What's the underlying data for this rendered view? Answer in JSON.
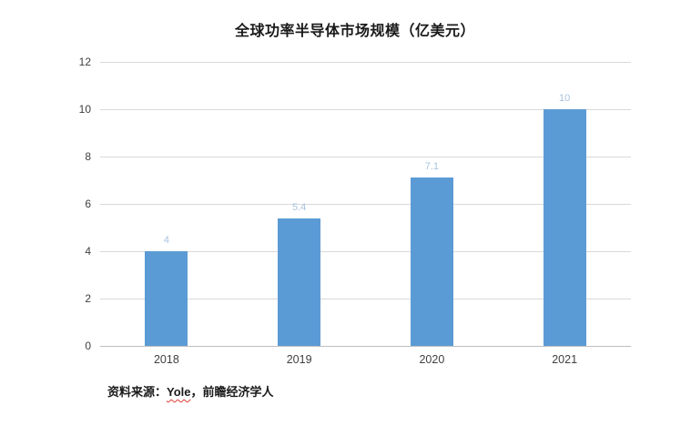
{
  "title": "全球功率半导体市场规模（亿美元）",
  "source_note": {
    "prefix": "资料来源：",
    "highlight": "Yole",
    "suffix": "，前瞻经济学人"
  },
  "colors": {
    "bar": "#5b9bd5",
    "data_label": "#a9c2de",
    "gridline": "#d9d9d9",
    "axis_line": "#bfbfbf",
    "tick_label": "#404040",
    "title": "#1a1a1a"
  },
  "chart_data": {
    "type": "bar",
    "title": "全球功率半导体市场规模（亿美元）",
    "categories": [
      "2018",
      "2019",
      "2020",
      "2021"
    ],
    "values": [
      4,
      5.4,
      7.1,
      10
    ],
    "data_labels": [
      "4",
      "5.4",
      "7.1",
      "10"
    ],
    "xlabel": "",
    "ylabel": "",
    "ylim": [
      0,
      12
    ],
    "yticks": [
      0,
      2,
      4,
      6,
      8,
      10,
      12
    ],
    "grid": true,
    "legend_position": "none",
    "annotation": "资料来源：Yole，前瞻经济学人"
  }
}
